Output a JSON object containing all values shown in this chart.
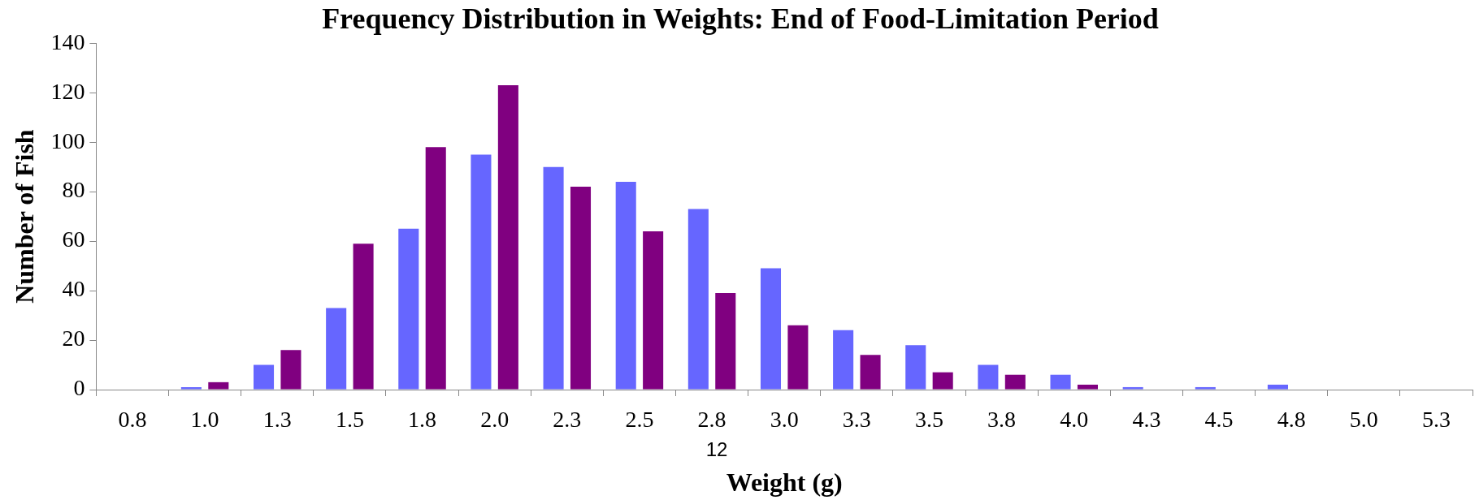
{
  "chart_data": {
    "type": "bar",
    "title": "Frequency Distribution in Weights: End of Food-Limitation Period",
    "xlabel": "Weight (g)",
    "ylabel": "Number of Fish",
    "categories": [
      "0.8",
      "1.0",
      "1.3",
      "1.5",
      "1.8",
      "2.0",
      "2.3",
      "2.5",
      "2.8",
      "3.0",
      "3.3",
      "3.5",
      "3.8",
      "4.0",
      "4.3",
      "4.5",
      "4.8",
      "5.0",
      "5.3"
    ],
    "series": [
      {
        "color": "#6666ff",
        "values": [
          0,
          1,
          10,
          33,
          65,
          95,
          90,
          84,
          73,
          49,
          24,
          18,
          10,
          6,
          1,
          1,
          2,
          0,
          0
        ]
      },
      {
        "color": "#800080",
        "values": [
          0,
          3,
          16,
          59,
          98,
          123,
          82,
          64,
          39,
          26,
          14,
          7,
          6,
          2,
          0,
          0,
          0,
          0,
          0
        ]
      }
    ],
    "ylim": [
      0,
      140
    ],
    "yticks": [
      0,
      20,
      40,
      60,
      80,
      100,
      120,
      140
    ],
    "grid": false,
    "legend": false,
    "annotations": [
      "12"
    ]
  }
}
